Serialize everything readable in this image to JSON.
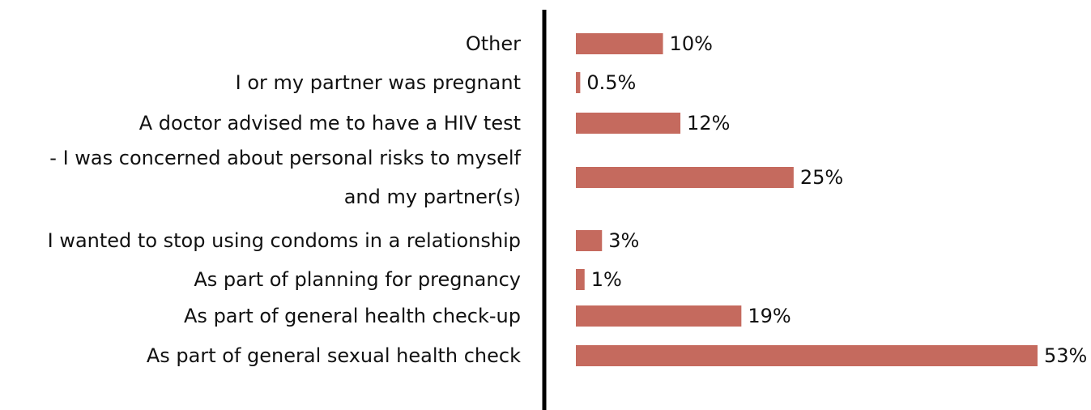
{
  "chart_data": {
    "type": "bar",
    "orientation": "horizontal",
    "categories": [
      "Other",
      "I or my partner was pregnant",
      "A doctor advised me to have a HIV test",
      "- I was concerned about personal risks to myself\nand my partner(s)",
      "I wanted to stop using condoms in a relationship",
      "As part of planning for pregnancy",
      "As part of general health check-up",
      "As part of general sexual health check"
    ],
    "values": [
      10,
      0.5,
      12,
      25,
      3,
      1,
      19,
      53
    ],
    "value_labels": [
      "10%",
      "0.5%",
      "12%",
      "25%",
      "3%",
      "1%",
      "19%",
      "53%"
    ],
    "color": "#c56a5e"
  }
}
